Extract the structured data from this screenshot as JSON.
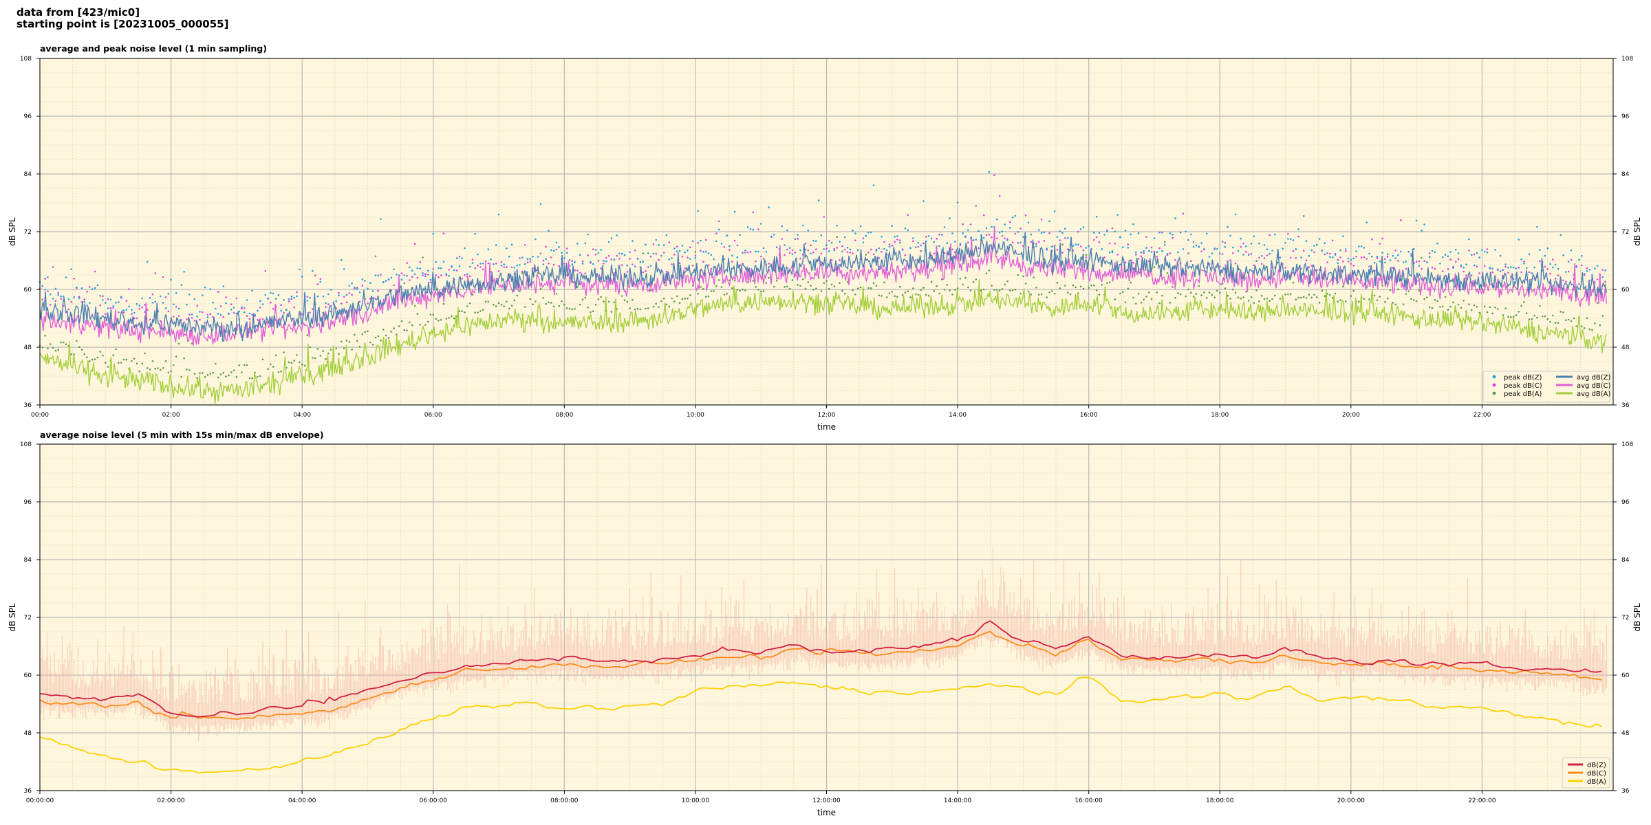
{
  "figure": {
    "suptitle_line1": "data from [423/mic0]",
    "suptitle_line2": "starting point is [20231005_000055]"
  },
  "colors": {
    "plot_background": "#fef6dc",
    "zC": "#4a7fb0",
    "cC": "#e060d8",
    "aC": "#a4cf3c",
    "peakZ": "#1f9fe0",
    "peakC": "#e040e0",
    "peakA": "#5a9a4a",
    "z5": "#d21f44",
    "c5": "#ff8c1a",
    "a5": "#ffd000",
    "envelope": "#f5b5a6"
  },
  "chart_data": [
    {
      "type": "line",
      "title": "average and peak noise level (1 min sampling)",
      "xlabel": "time",
      "ylabel": "dB SPL",
      "ylabel_right": "dB SPL",
      "xlim_hours": [
        0,
        24
      ],
      "ylim": [
        36,
        108
      ],
      "yticks": [
        36,
        48,
        60,
        72,
        84,
        96,
        108
      ],
      "xticks": [
        "00:00",
        "02:00",
        "04:00",
        "06:00",
        "08:00",
        "10:00",
        "12:00",
        "14:00",
        "16:00",
        "18:00",
        "20:00",
        "22:00"
      ],
      "grid": true,
      "legend_placement": "lower-right",
      "legend": [
        {
          "label": "peak dB(Z)",
          "kind": "marker",
          "color": "peakZ"
        },
        {
          "label": "peak dB(C)",
          "kind": "marker",
          "color": "peakC"
        },
        {
          "label": "peak dB(A)",
          "kind": "marker",
          "color": "peakA"
        },
        {
          "label": "avg dB(Z)",
          "kind": "line",
          "color": "zC"
        },
        {
          "label": "avg dB(C)",
          "kind": "line",
          "color": "cC"
        },
        {
          "label": "avg dB(A)",
          "kind": "line",
          "color": "aC"
        }
      ],
      "series": [
        {
          "name": "avg dB(Z)",
          "x": [
            0,
            0.5,
            1,
            1.5,
            2,
            2.5,
            3,
            3.5,
            4,
            4.5,
            5,
            5.5,
            6,
            6.5,
            7,
            7.5,
            8,
            8.5,
            9,
            9.5,
            10,
            10.5,
            11,
            11.5,
            12,
            12.5,
            13,
            13.5,
            14,
            14.5,
            15,
            15.5,
            16,
            16.5,
            17,
            17.5,
            18,
            18.5,
            19,
            19.5,
            20,
            20.5,
            21,
            21.5,
            22,
            22.5,
            23,
            23.5,
            23.9
          ],
          "values": [
            56,
            55,
            54,
            53,
            53,
            52,
            52,
            53,
            54,
            55,
            57,
            59,
            60,
            61,
            62,
            62.5,
            63,
            62.5,
            62.5,
            63,
            63.5,
            64,
            64.5,
            65,
            65.5,
            65.5,
            66,
            66,
            67,
            69,
            67,
            66,
            66,
            65,
            64.5,
            64.5,
            64,
            63.5,
            64,
            63.5,
            63,
            63,
            62.5,
            62,
            62,
            61.5,
            61,
            60.5,
            60
          ]
        },
        {
          "name": "avg dB(C)",
          "x": [
            0,
            0.5,
            1,
            1.5,
            2,
            2.5,
            3,
            3.5,
            4,
            4.5,
            5,
            5.5,
            6,
            6.5,
            7,
            7.5,
            8,
            8.5,
            9,
            9.5,
            10,
            10.5,
            11,
            11.5,
            12,
            12.5,
            13,
            13.5,
            14,
            14.5,
            15,
            15.5,
            16,
            16.5,
            17,
            17.5,
            18,
            18.5,
            19,
            19.5,
            20,
            20.5,
            21,
            21.5,
            22,
            22.5,
            23,
            23.5,
            23.9
          ],
          "values": [
            54,
            53,
            52,
            51.5,
            51,
            50.5,
            51,
            51.5,
            52,
            53.5,
            55,
            57.5,
            59,
            60,
            61,
            61,
            61.5,
            61,
            61,
            61.5,
            62,
            62.5,
            63,
            63.5,
            63.5,
            63.5,
            64,
            64,
            65,
            67,
            65,
            64,
            64,
            63.5,
            63,
            62.5,
            62.5,
            62,
            62.5,
            62,
            61.5,
            61.5,
            61,
            60.5,
            60.5,
            60,
            59.5,
            59,
            59
          ]
        },
        {
          "name": "avg dB(A)",
          "x": [
            0,
            0.5,
            1,
            1.5,
            2,
            2.5,
            3,
            3.5,
            4,
            4.5,
            5,
            5.5,
            6,
            6.5,
            7,
            7.5,
            8,
            8.5,
            9,
            9.5,
            10,
            10.5,
            11,
            11.5,
            12,
            12.5,
            13,
            13.5,
            14,
            14.5,
            15,
            15.5,
            16,
            16.5,
            17,
            17.5,
            18,
            18.5,
            19,
            19.5,
            20,
            20.5,
            21,
            21.5,
            22,
            22.5,
            23,
            23.5,
            23.9
          ],
          "values": [
            46,
            44,
            42,
            41,
            40,
            39,
            39,
            40,
            42,
            44,
            46,
            48.5,
            51,
            52.5,
            53.5,
            54,
            53,
            53,
            53.5,
            54,
            56,
            57,
            57.5,
            58,
            57,
            56.5,
            56,
            56.5,
            57,
            58,
            57,
            56,
            57.5,
            55,
            55,
            55.5,
            56,
            55,
            56,
            55,
            55.5,
            55,
            54,
            53.5,
            53,
            52,
            51,
            50,
            49
          ]
        }
      ],
      "peaks_note_values_approx_above_avg_db": 4
    },
    {
      "type": "line",
      "title": "average noise level (5 min with 15s min/max dB envelope)",
      "xlabel": "time",
      "ylabel": "dB SPL",
      "ylabel_right": "dB SPL",
      "xlim_hours": [
        0,
        24
      ],
      "ylim": [
        36,
        108
      ],
      "yticks": [
        36,
        48,
        60,
        72,
        84,
        96,
        108
      ],
      "xticks": [
        "00:00:00",
        "02:00:00",
        "04:00:00",
        "06:00:00",
        "08:00:00",
        "10:00:00",
        "12:00:00",
        "14:00:00",
        "16:00:00",
        "18:00:00",
        "20:00:00",
        "22:00:00"
      ],
      "grid": true,
      "legend_placement": "lower-right",
      "legend": [
        {
          "label": "dB(Z)",
          "kind": "line",
          "color": "z5"
        },
        {
          "label": "dB(C)",
          "kind": "line",
          "color": "c5"
        },
        {
          "label": "dB(A)",
          "kind": "line",
          "color": "a5"
        }
      ],
      "series": [
        {
          "name": "dB(Z)",
          "x": [
            0,
            0.5,
            1,
            1.5,
            2,
            2.5,
            3,
            3.5,
            4,
            4.5,
            5,
            5.5,
            6,
            6.5,
            7,
            7.5,
            8,
            8.5,
            9,
            9.5,
            10,
            10.5,
            11,
            11.5,
            12,
            12.5,
            13,
            13.5,
            14,
            14.5,
            15,
            15.5,
            16,
            16.5,
            17,
            17.5,
            18,
            18.5,
            19,
            19.5,
            20,
            20.5,
            21,
            21.5,
            22,
            22.5,
            23,
            23.5,
            23.9
          ],
          "values": [
            56,
            55.5,
            55,
            56,
            52,
            52,
            52,
            53,
            53.5,
            54.5,
            56.5,
            59,
            60.5,
            62,
            62.5,
            63,
            63.5,
            63,
            63,
            63.5,
            64,
            64.5,
            64.5,
            66.5,
            65,
            65,
            65.5,
            66,
            67,
            71,
            67.5,
            65.5,
            68,
            64.5,
            64,
            64,
            64,
            63.5,
            65.5,
            63.5,
            63,
            63,
            62.5,
            62,
            62,
            61.5,
            61.5,
            61,
            60.5
          ]
        },
        {
          "name": "dB(C)",
          "x": [
            0,
            0.5,
            1,
            1.5,
            2,
            2.5,
            3,
            3.5,
            4,
            4.5,
            5,
            5.5,
            6,
            6.5,
            7,
            7.5,
            8,
            8.5,
            9,
            9.5,
            10,
            10.5,
            11,
            11.5,
            12,
            12.5,
            13,
            13.5,
            14,
            14.5,
            15,
            15.5,
            16,
            16.5,
            17,
            17.5,
            18,
            18.5,
            19,
            19.5,
            20,
            20.5,
            21,
            21.5,
            22,
            22.5,
            23,
            23.5,
            23.9
          ],
          "values": [
            55,
            54,
            53.5,
            54.5,
            51,
            51,
            51,
            51.5,
            52,
            53,
            55,
            57.5,
            59.5,
            61,
            61.5,
            62,
            62,
            62,
            62,
            62.5,
            63,
            63.5,
            63.5,
            65,
            64,
            64,
            64.5,
            65,
            66,
            69,
            66,
            64.5,
            67,
            63.5,
            63,
            63,
            63,
            62.5,
            64.5,
            62.5,
            62,
            62,
            61.5,
            61,
            61,
            60.5,
            60.5,
            60,
            59.5
          ]
        },
        {
          "name": "dB(A)",
          "x": [
            0,
            0.5,
            1,
            1.5,
            2,
            2.5,
            3,
            3.5,
            4,
            4.5,
            5,
            5.5,
            6,
            6.5,
            7,
            7.5,
            8,
            8.5,
            9,
            9.5,
            10,
            10.5,
            11,
            11.5,
            12,
            12.5,
            13,
            13.5,
            14,
            14.5,
            15,
            15.5,
            16,
            16.5,
            17,
            17.5,
            18,
            18.5,
            19,
            19.5,
            20,
            20.5,
            21,
            21.5,
            22,
            22.5,
            23,
            23.5,
            23.9
          ],
          "values": [
            47,
            45,
            43,
            42,
            40,
            39.5,
            40,
            41,
            42,
            44,
            46,
            48.5,
            51,
            52.5,
            53.5,
            54,
            53,
            53,
            53.5,
            54,
            56.5,
            57.5,
            57.5,
            58.5,
            57.5,
            57,
            56.5,
            56.5,
            57,
            58,
            57,
            56,
            59,
            55,
            55,
            55.5,
            56,
            55,
            58,
            55,
            55.5,
            55,
            54,
            53.5,
            53,
            52,
            50.5,
            49.5,
            48.5
          ]
        }
      ],
      "envelope_note": "15s min/max dB envelope shaded behind the averages"
    }
  ]
}
